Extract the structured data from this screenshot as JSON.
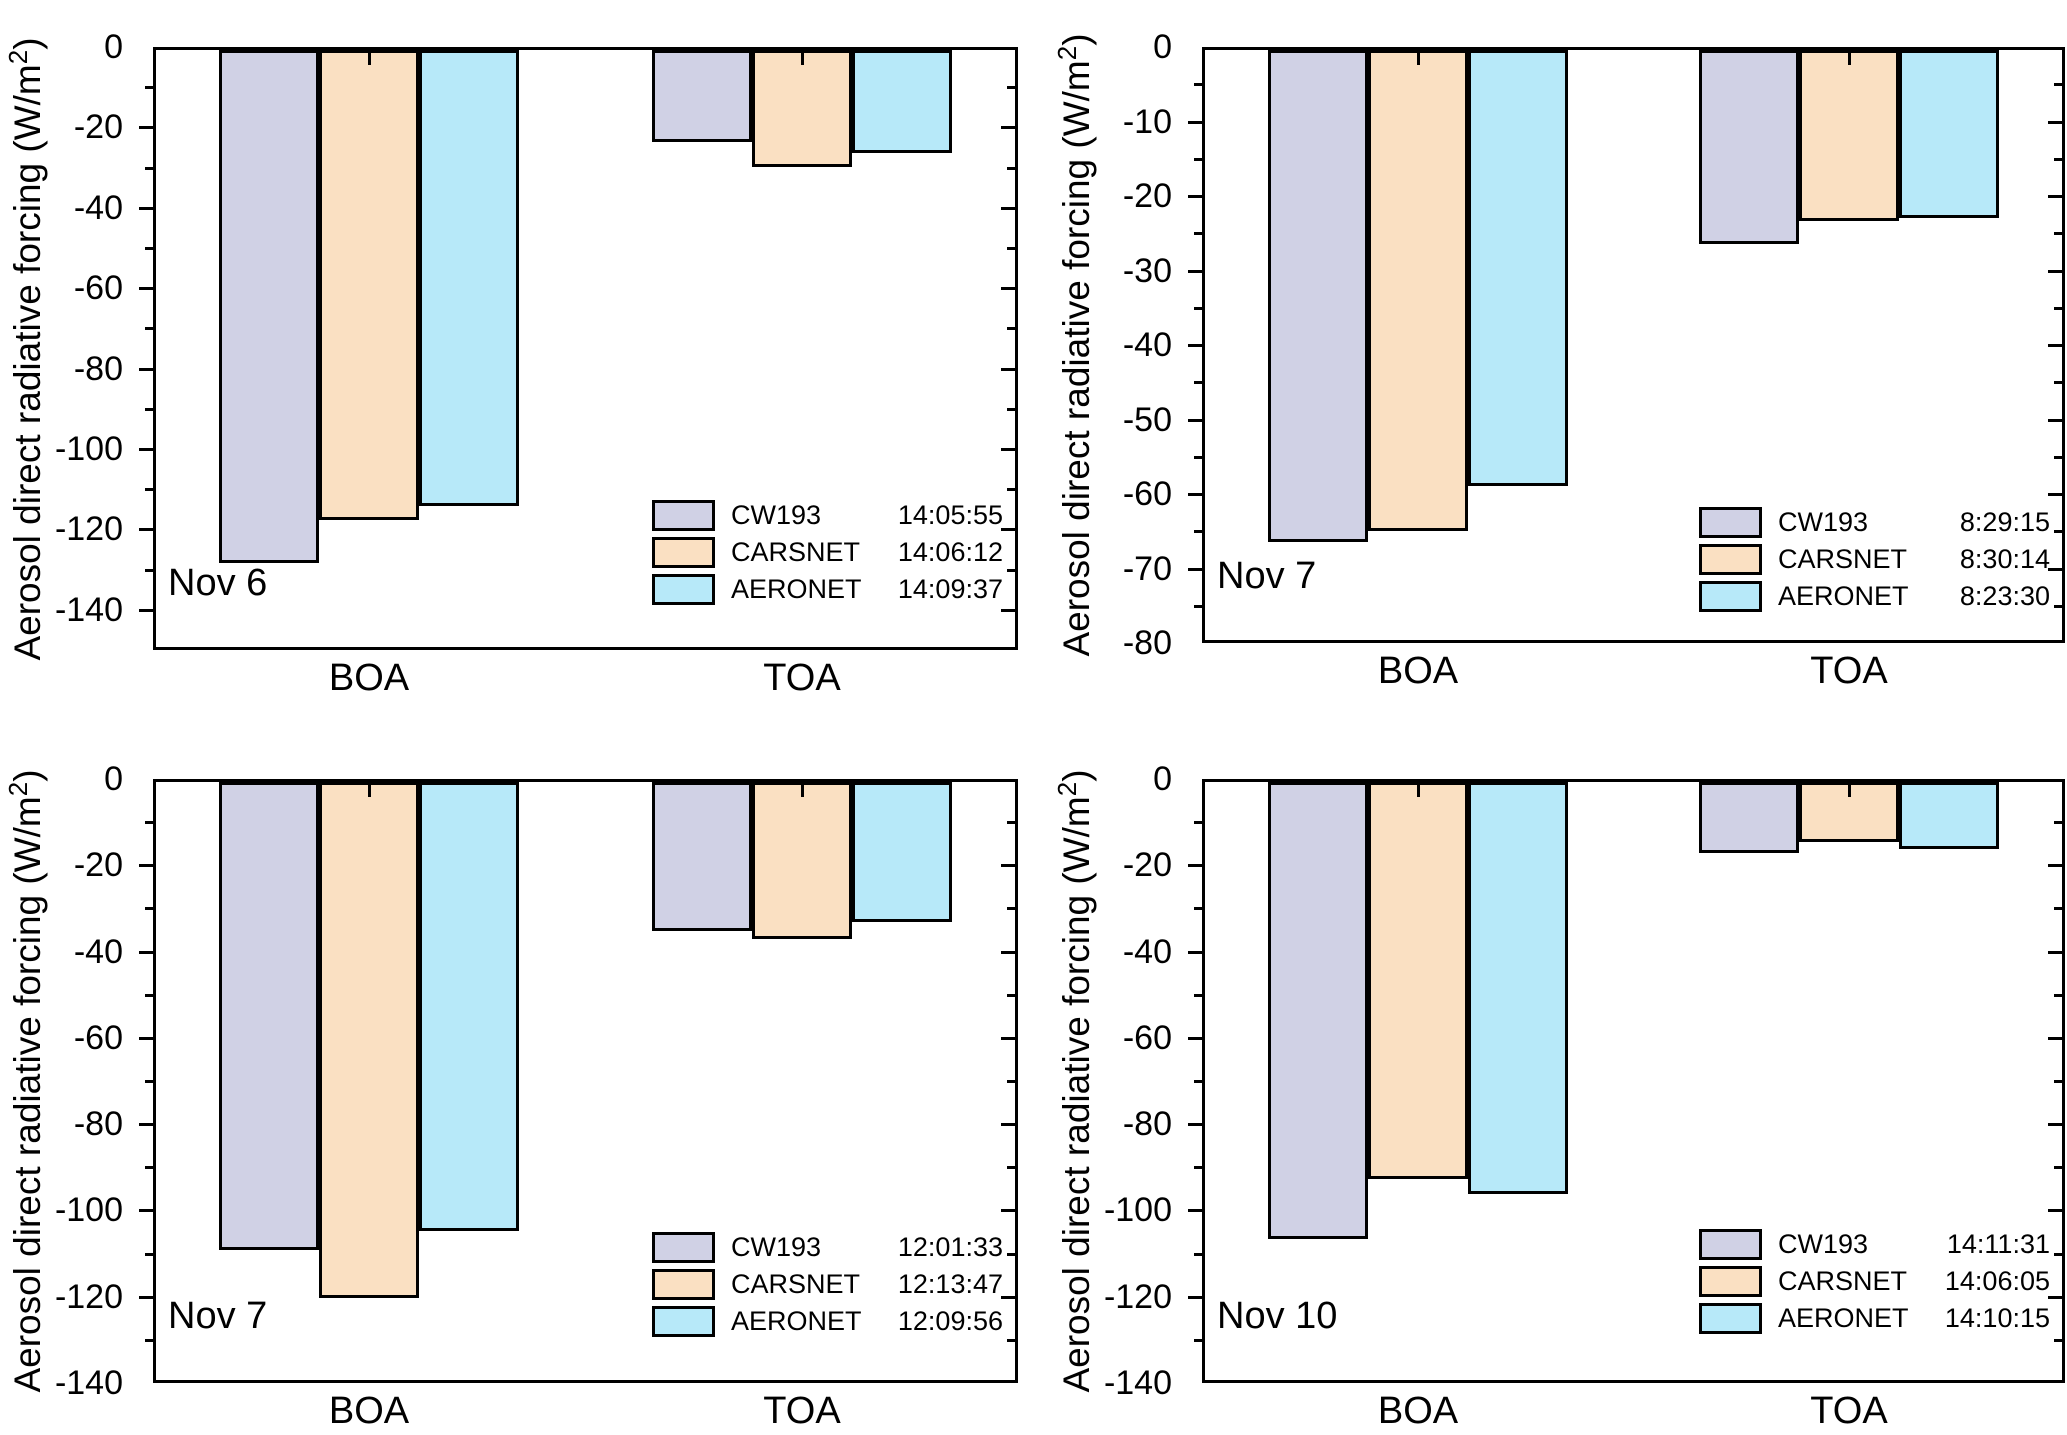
{
  "figure": {
    "ylabel_base": "Aerosol direct radiative forcing (W/m",
    "ylabel_sup": "2",
    "ylabel_end": ")",
    "series_colors": {
      "CW193": "#D0D1E5",
      "CARSNET": "#FAE0C2",
      "AERONET": "#B7E9F9"
    },
    "axis_color": "#000000",
    "background_color": "#ffffff"
  },
  "chart_data": [
    {
      "type": "bar",
      "panel": "top-left",
      "date_label": "Nov 6",
      "ylabel": "Aerosol direct radiative forcing (W/m²)",
      "categories": [
        "BOA",
        "TOA"
      ],
      "ylim": [
        -150,
        0
      ],
      "ytick_step": 20,
      "ytick_minor_step": 10,
      "ytick_values": [
        0,
        -20,
        -40,
        -60,
        -80,
        -100,
        -120,
        -140
      ],
      "ytick_labels": [
        "0",
        "-20",
        "-40",
        "-60",
        "-80",
        "-100",
        "-120",
        "-140"
      ],
      "legend_position": "bottom-right",
      "grid": false,
      "series": [
        {
          "name": "CW193",
          "time": "14:05:55",
          "color": "#D0D1E5",
          "values": [
            -127.5,
            -23
          ]
        },
        {
          "name": "CARSNET",
          "time": "14:06:12",
          "color": "#FAE0C2",
          "values": [
            -117,
            -29
          ]
        },
        {
          "name": "AERONET",
          "time": "14:09:37",
          "color": "#B7E9F9",
          "values": [
            -113.5,
            -25.5
          ]
        }
      ]
    },
    {
      "type": "bar",
      "panel": "top-right",
      "date_label": "Nov 7",
      "ylabel": "Aerosol direct radiative forcing (W/m²)",
      "categories": [
        "BOA",
        "TOA"
      ],
      "ylim": [
        -80,
        0
      ],
      "ytick_step": 10,
      "ytick_minor_step": 5,
      "ytick_values": [
        0,
        -10,
        -20,
        -30,
        -40,
        -50,
        -60,
        -70,
        -80
      ],
      "ytick_labels": [
        "0",
        "-10",
        "-20",
        "-30",
        "-40",
        "-50",
        "-60",
        "-70",
        "-80"
      ],
      "legend_position": "bottom-right",
      "grid": false,
      "series": [
        {
          "name": "CW193",
          "time": "8:29:15",
          "color": "#D0D1E5",
          "values": [
            -66,
            -26
          ]
        },
        {
          "name": "CARSNET",
          "time": "8:30:14",
          "color": "#FAE0C2",
          "values": [
            -64.5,
            -23
          ]
        },
        {
          "name": "AERONET",
          "time": "8:23:30",
          "color": "#B7E9F9",
          "values": [
            -58.5,
            -22.5
          ]
        }
      ]
    },
    {
      "type": "bar",
      "panel": "bottom-left",
      "date_label": "Nov 7",
      "ylabel": "Aerosol direct radiative forcing (W/m²)",
      "categories": [
        "BOA",
        "TOA"
      ],
      "ylim": [
        -140,
        0
      ],
      "ytick_step": 20,
      "ytick_minor_step": 10,
      "ytick_values": [
        0,
        -20,
        -40,
        -60,
        -80,
        -100,
        -120,
        -140
      ],
      "ytick_labels": [
        "0",
        "-20",
        "-40",
        "-60",
        "-80",
        "-100",
        "-120",
        "-140"
      ],
      "legend_position": "bottom-right",
      "grid": false,
      "series": [
        {
          "name": "CW193",
          "time": "12:01:33",
          "color": "#D0D1E5",
          "values": [
            -108.5,
            -34.5
          ]
        },
        {
          "name": "CARSNET",
          "time": "12:13:47",
          "color": "#FAE0C2",
          "values": [
            -119.5,
            -36.5
          ]
        },
        {
          "name": "AERONET",
          "time": "12:09:56",
          "color": "#B7E9F9",
          "values": [
            -104,
            -32.5
          ]
        }
      ]
    },
    {
      "type": "bar",
      "panel": "bottom-right",
      "date_label": "Nov 10",
      "ylabel": "Aerosol direct radiative forcing (W/m²)",
      "categories": [
        "BOA",
        "TOA"
      ],
      "ylim": [
        -140,
        0
      ],
      "ytick_step": 20,
      "ytick_minor_step": 10,
      "ytick_values": [
        0,
        -20,
        -40,
        -60,
        -80,
        -100,
        -120,
        -140
      ],
      "ytick_labels": [
        "0",
        "-20",
        "-40",
        "-60",
        "-80",
        "-100",
        "-120",
        "-140"
      ],
      "legend_position": "bottom-right",
      "grid": false,
      "series": [
        {
          "name": "CW193",
          "time": "14:11:31",
          "color": "#D0D1E5",
          "values": [
            -106,
            -16.5
          ]
        },
        {
          "name": "CARSNET",
          "time": "14:06:05",
          "color": "#FAE0C2",
          "values": [
            -92,
            -14
          ]
        },
        {
          "name": "AERONET",
          "time": "14:10:15",
          "color": "#B7E9F9",
          "values": [
            -95.5,
            -15.5
          ]
        }
      ]
    }
  ]
}
